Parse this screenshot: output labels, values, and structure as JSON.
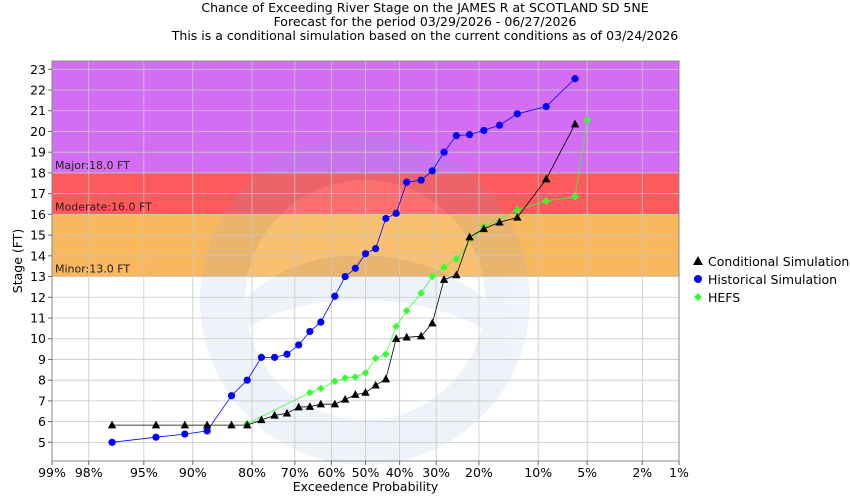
{
  "chart_data": {
    "type": "line",
    "title_lines": [
      "Chance of Exceeding River Stage on the JAMES R at SCOTLAND SD 5NE",
      "Forecast for the period 03/29/2026 - 06/27/2026",
      "This is a conditional simulation based on the current conditions as of 03/24/2026"
    ],
    "xlabel": "Exceedence Probability",
    "ylabel": "Stage (FT)",
    "x_axis_scale": "normal-probability",
    "x_ticks": [
      "99%",
      "98%",
      "95%",
      "90%",
      "80%",
      "70%",
      "60%",
      "50%",
      "40%",
      "30%",
      "20%",
      "10%",
      "5%",
      "2%",
      "1%"
    ],
    "y_ticks": [
      "5",
      "6",
      "7",
      "8",
      "9",
      "10",
      "11",
      "12",
      "13",
      "14",
      "15",
      "16",
      "17",
      "18",
      "19",
      "20",
      "21",
      "22",
      "23"
    ],
    "ylim": [
      4.1,
      23.4
    ],
    "grid": true,
    "legend_position": "right",
    "flood_categories": [
      {
        "label": "Minor:13.0 FT",
        "from": 13.0,
        "to": 16.0,
        "color": "#f9b75e"
      },
      {
        "label": "Moderate:16.0 FT",
        "from": 16.0,
        "to": 18.0,
        "color": "#fd5b5b"
      },
      {
        "label": "Major:18.0 FT",
        "from": 18.0,
        "to": 23.4,
        "color": "#d36df3"
      }
    ],
    "series": [
      {
        "name": "Conditional Simulation",
        "color": "#000000",
        "marker": "triangle",
        "points": [
          [
            97,
            5.83
          ],
          [
            94,
            5.83
          ],
          [
            91,
            5.83
          ],
          [
            88,
            5.83
          ],
          [
            84,
            5.83
          ],
          [
            81,
            5.83
          ],
          [
            78,
            6.08
          ],
          [
            75,
            6.3
          ],
          [
            72,
            6.4
          ],
          [
            69,
            6.7
          ],
          [
            66,
            6.72
          ],
          [
            63,
            6.84
          ],
          [
            59,
            6.84
          ],
          [
            56,
            7.07
          ],
          [
            53,
            7.3
          ],
          [
            50,
            7.4
          ],
          [
            47,
            7.75
          ],
          [
            44,
            8.05
          ],
          [
            41,
            10.0
          ],
          [
            38,
            10.07
          ],
          [
            34,
            10.12
          ],
          [
            31,
            10.75
          ],
          [
            28,
            12.85
          ],
          [
            25,
            13.07
          ],
          [
            22,
            14.9
          ],
          [
            19,
            15.3
          ],
          [
            16,
            15.62
          ],
          [
            13,
            15.85
          ],
          [
            9,
            17.7
          ],
          [
            6,
            20.35
          ]
        ]
      },
      {
        "name": "Historical Simulation",
        "color": "#0000ff",
        "marker": "circle",
        "points": [
          [
            97,
            5.0
          ],
          [
            94,
            5.25
          ],
          [
            91,
            5.4
          ],
          [
            88,
            5.55
          ],
          [
            84,
            7.25
          ],
          [
            81,
            8.0
          ],
          [
            78,
            9.1
          ],
          [
            75,
            9.1
          ],
          [
            72,
            9.25
          ],
          [
            69,
            9.7
          ],
          [
            66,
            10.35
          ],
          [
            63,
            10.8
          ],
          [
            59,
            12.05
          ],
          [
            56,
            13.0
          ],
          [
            53,
            13.4
          ],
          [
            50,
            14.1
          ],
          [
            47,
            14.35
          ],
          [
            44,
            15.8
          ],
          [
            41,
            16.05
          ],
          [
            38,
            17.55
          ],
          [
            34,
            17.65
          ],
          [
            31,
            18.1
          ],
          [
            28,
            19.0
          ],
          [
            25,
            19.8
          ],
          [
            22,
            19.85
          ],
          [
            19,
            20.05
          ],
          [
            16,
            20.3
          ],
          [
            13,
            20.85
          ],
          [
            9,
            21.2
          ],
          [
            6,
            22.55
          ]
        ]
      },
      {
        "name": "HEFS",
        "color": "#33ff33",
        "marker": "diamond",
        "points": [
          [
            81,
            5.9
          ],
          [
            66,
            7.4
          ],
          [
            63,
            7.6
          ],
          [
            59,
            7.95
          ],
          [
            56,
            8.1
          ],
          [
            53,
            8.15
          ],
          [
            50,
            8.35
          ],
          [
            47,
            9.05
          ],
          [
            44,
            9.25
          ],
          [
            41,
            10.6
          ],
          [
            38,
            11.35
          ],
          [
            34,
            12.2
          ],
          [
            31,
            13.0
          ],
          [
            28,
            13.45
          ],
          [
            25,
            13.85
          ],
          [
            19,
            15.4
          ],
          [
            13,
            16.2
          ],
          [
            9,
            16.65
          ],
          [
            6,
            16.85
          ],
          [
            5,
            20.55
          ]
        ]
      }
    ]
  }
}
